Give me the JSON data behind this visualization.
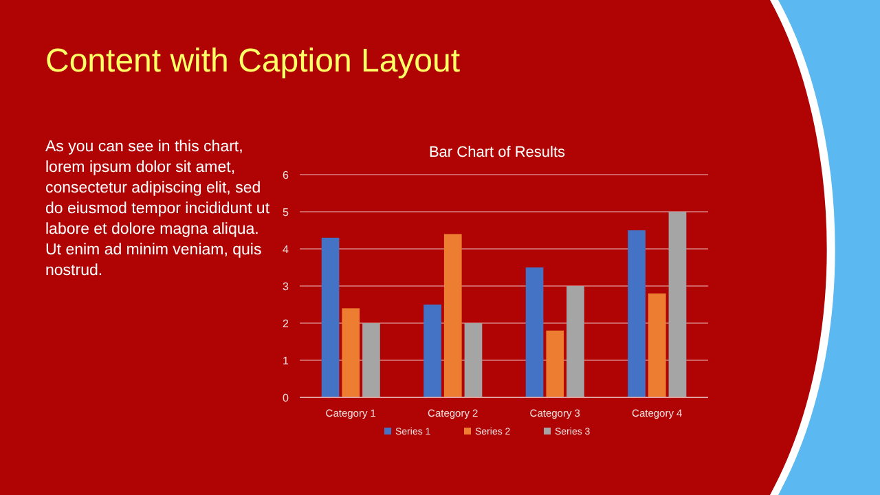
{
  "chart_data": {
    "type": "bar",
    "title": "Bar Chart of Results",
    "annotations": [
      "Content with Caption Layout",
      "As you can see in this chart, lorem ipsum dolor sit amet, consectetur adipiscing elit, sed do eiusmod tempor incididunt ut labore et dolore magna aliqua. Ut enim ad minim veniam, quis nostrud."
    ],
    "categories": [
      "Category 1",
      "Category 2",
      "Category 3",
      "Category 4"
    ],
    "series": [
      {
        "name": "Series 1",
        "color": "#4472c4",
        "values": [
          4.3,
          2.5,
          3.5,
          4.5
        ]
      },
      {
        "name": "Series 2",
        "color": "#ed7d31",
        "values": [
          2.4,
          4.4,
          1.8,
          2.8
        ]
      },
      {
        "name": "Series 3",
        "color": "#a5a5a5",
        "values": [
          2,
          2,
          3,
          5
        ]
      }
    ],
    "ylim": [
      0,
      6
    ],
    "yticks": [
      0,
      1,
      2,
      3,
      4,
      5,
      6
    ],
    "grid": "y",
    "legend": "bottom"
  }
}
